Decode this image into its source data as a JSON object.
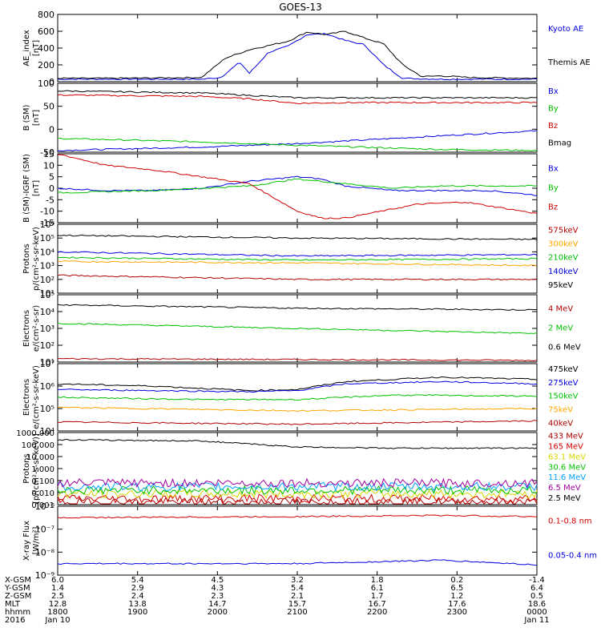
{
  "title": "GOES-13",
  "colors": {
    "black": "#000000",
    "red": "#d00000",
    "green": "#00c000",
    "blue": "#0000e0",
    "orange": "#ffa500",
    "cyan": "#00a0ff",
    "yellow": "#d8d800",
    "purple": "#a000a0",
    "darkred": "#b00000"
  },
  "time_axis": {
    "ticks": [
      "1800",
      "1900",
      "2000",
      "2100",
      "2200",
      "2300",
      "0000"
    ],
    "rows": [
      {
        "label": "X-GSM",
        "values": [
          "6.0",
          "5.4",
          "4.5",
          "3.2",
          "1.8",
          "0.2",
          "-1.4"
        ]
      },
      {
        "label": "Y-GSM",
        "values": [
          "1.4",
          "2.9",
          "4.3",
          "5.4",
          "6.1",
          "6.5",
          "6.4"
        ]
      },
      {
        "label": "Z-GSM",
        "values": [
          "2.5",
          "2.4",
          "2.3",
          "2.1",
          "1.7",
          "1.2",
          "0.5"
        ]
      },
      {
        "label": "MLT",
        "values": [
          "12.8",
          "13.8",
          "14.7",
          "15.7",
          "16.7",
          "17.6",
          "18.6"
        ]
      },
      {
        "label": "hhmm",
        "values": [
          "1800",
          "1900",
          "2000",
          "2100",
          "2200",
          "2300",
          "0000"
        ]
      },
      {
        "label": "2016",
        "values": [
          "Jan 10",
          "",
          "",
          "",
          "",
          "",
          "Jan 11"
        ]
      }
    ]
  },
  "chart_data": [
    {
      "type": "line",
      "id": "ae",
      "ylabel_lines": [
        "AE_index",
        "[nT]"
      ],
      "ylim": [
        0,
        800
      ],
      "ticks": [
        "800",
        "600",
        "400",
        "200",
        "0"
      ],
      "series": [
        {
          "name": "Kyoto AE",
          "color": "blue"
        },
        {
          "name": "Themis AE",
          "color": "black"
        }
      ],
      "profiles": {
        "Themis AE": [
          [
            0,
            40
          ],
          [
            0.1,
            40
          ],
          [
            0.2,
            45
          ],
          [
            0.3,
            50
          ],
          [
            0.35,
            280
          ],
          [
            0.4,
            380
          ],
          [
            0.44,
            430
          ],
          [
            0.48,
            480
          ],
          [
            0.52,
            590
          ],
          [
            0.56,
            560
          ],
          [
            0.6,
            600
          ],
          [
            0.64,
            520
          ],
          [
            0.68,
            450
          ],
          [
            0.72,
            200
          ],
          [
            0.76,
            60
          ],
          [
            0.8,
            70
          ],
          [
            0.86,
            50
          ],
          [
            1,
            40
          ]
        ],
        "Kyoto AE": [
          [
            0,
            30
          ],
          [
            0.1,
            30
          ],
          [
            0.2,
            30
          ],
          [
            0.3,
            30
          ],
          [
            0.34,
            50
          ],
          [
            0.38,
            230
          ],
          [
            0.4,
            100
          ],
          [
            0.44,
            350
          ],
          [
            0.48,
            420
          ],
          [
            0.52,
            560
          ],
          [
            0.56,
            570
          ],
          [
            0.6,
            490
          ],
          [
            0.64,
            440
          ],
          [
            0.68,
            200
          ],
          [
            0.72,
            40
          ],
          [
            0.8,
            30
          ],
          [
            1,
            30
          ]
        ]
      }
    },
    {
      "type": "line",
      "id": "bsm",
      "ylabel_lines": [
        "B (SM)",
        "[nT]"
      ],
      "ylim": [
        -60,
        140
      ],
      "ticks": [
        "100",
        "50",
        "0",
        "-50"
      ],
      "series": [
        {
          "name": "Bx",
          "color": "blue"
        },
        {
          "name": "By",
          "color": "green"
        },
        {
          "name": "Bz",
          "color": "red"
        },
        {
          "name": "Bmag",
          "color": "black"
        }
      ],
      "profiles": {
        "Bmag": [
          [
            0,
            118
          ],
          [
            0.3,
            112
          ],
          [
            0.4,
            105
          ],
          [
            0.5,
            98
          ],
          [
            0.6,
            98
          ],
          [
            1,
            98
          ]
        ],
        "Bz": [
          [
            0,
            106
          ],
          [
            0.3,
            102
          ],
          [
            0.4,
            95
          ],
          [
            0.5,
            82
          ],
          [
            0.6,
            84
          ],
          [
            1,
            84
          ]
        ],
        "By": [
          [
            0,
            -20
          ],
          [
            0.3,
            -30
          ],
          [
            0.5,
            -40
          ],
          [
            0.7,
            -48
          ],
          [
            0.8,
            -52
          ],
          [
            1,
            -55
          ]
        ],
        "Bx": [
          [
            0,
            -55
          ],
          [
            0.3,
            -45
          ],
          [
            0.5,
            -35
          ],
          [
            0.7,
            -20
          ],
          [
            0.9,
            -5
          ],
          [
            1,
            2
          ]
        ]
      }
    },
    {
      "type": "line",
      "id": "bigrf",
      "ylabel_lines": [
        "B (SM)-IGRF (SM)",
        "[nT]"
      ],
      "ylim": [
        -15,
        15
      ],
      "ticks": [
        "15",
        "10",
        "5",
        "0",
        "-5",
        "-10",
        "-15"
      ],
      "series": [
        {
          "name": "Bx",
          "color": "blue"
        },
        {
          "name": "By",
          "color": "green"
        },
        {
          "name": "Bz",
          "color": "red"
        }
      ],
      "profiles": {
        "Bz": [
          [
            0,
            15
          ],
          [
            0.1,
            10
          ],
          [
            0.2,
            8
          ],
          [
            0.3,
            5
          ],
          [
            0.4,
            2
          ],
          [
            0.45,
            -4
          ],
          [
            0.5,
            -10
          ],
          [
            0.55,
            -13
          ],
          [
            0.6,
            -13
          ],
          [
            0.7,
            -9
          ],
          [
            0.75,
            -7
          ],
          [
            0.85,
            -6
          ],
          [
            1,
            -11
          ]
        ],
        "By": [
          [
            0,
            -2
          ],
          [
            0.2,
            -1
          ],
          [
            0.3,
            0
          ],
          [
            0.4,
            1
          ],
          [
            0.5,
            4
          ],
          [
            0.55,
            3
          ],
          [
            0.6,
            2
          ],
          [
            0.7,
            0
          ],
          [
            0.8,
            1
          ],
          [
            1,
            1
          ]
        ],
        "Bx": [
          [
            0,
            0
          ],
          [
            0.1,
            -1
          ],
          [
            0.2,
            -1
          ],
          [
            0.3,
            0
          ],
          [
            0.4,
            3
          ],
          [
            0.5,
            5
          ],
          [
            0.55,
            4
          ],
          [
            0.6,
            1
          ],
          [
            0.7,
            -1
          ],
          [
            0.8,
            -1
          ],
          [
            0.9,
            -1
          ],
          [
            1,
            -3
          ]
        ]
      }
    },
    {
      "type": "line",
      "id": "protons1",
      "ylabel_lines": [
        "Protons",
        "p/(cm²-s-sr-keV)"
      ],
      "log": true,
      "ylim": [
        1,
        6
      ],
      "ticks": [
        "10⁶",
        "10⁵",
        "10⁴",
        "10³",
        "10²",
        "10¹"
      ],
      "series": [
        {
          "name": "575keV",
          "color": "darkred"
        },
        {
          "name": "300keV",
          "color": "orange"
        },
        {
          "name": "210keV",
          "color": "green"
        },
        {
          "name": "140keV",
          "color": "blue"
        },
        {
          "name": "95keV",
          "color": "black"
        }
      ],
      "profiles": {
        "95keV": [
          [
            0,
            5.2
          ],
          [
            0.5,
            5.0
          ],
          [
            1,
            4.9
          ]
        ],
        "140keV": [
          [
            0,
            4.0
          ],
          [
            0.5,
            3.7
          ],
          [
            1,
            3.8
          ]
        ],
        "210keV": [
          [
            0,
            3.6
          ],
          [
            0.5,
            3.4
          ],
          [
            1,
            3.5
          ]
        ],
        "300keV": [
          [
            0,
            3.3
          ],
          [
            0.5,
            3.2
          ],
          [
            1,
            3.0
          ]
        ],
        "575keV": [
          [
            0,
            2.3
          ],
          [
            0.5,
            2.0
          ],
          [
            1,
            2.0
          ]
        ]
      }
    },
    {
      "type": "line",
      "id": "electrons1",
      "ylabel_lines": [
        "Electrons",
        "e/(cm²-s-sr)"
      ],
      "log": true,
      "ylim": [
        1,
        5
      ],
      "ticks": [
        "10⁵",
        "10⁴",
        "10³",
        "10²",
        "10¹"
      ],
      "series": [
        {
          "name": "4 MeV",
          "color": "darkred"
        },
        {
          "name": "2 MeV",
          "color": "green"
        },
        {
          "name": "0.6 MeV",
          "color": "black"
        }
      ],
      "profiles": {
        "0.6 MeV": [
          [
            0,
            4.4
          ],
          [
            0.5,
            4.2
          ],
          [
            1,
            4.1
          ]
        ],
        "2 MeV": [
          [
            0,
            3.3
          ],
          [
            0.5,
            3.0
          ],
          [
            1,
            2.7
          ]
        ],
        "4 MeV": [
          [
            0,
            1.2
          ],
          [
            0.5,
            1.15
          ],
          [
            1,
            1.1
          ]
        ]
      }
    },
    {
      "type": "line",
      "id": "electrons2",
      "ylabel_lines": [
        "Electrons",
        "e/(cm²-s-sr-keV)"
      ],
      "log": true,
      "ylim": [
        4,
        7
      ],
      "ticks": [
        "10⁷",
        "10⁶",
        "10⁵",
        "10⁴"
      ],
      "series": [
        {
          "name": "475keV",
          "color": "black"
        },
        {
          "name": "275keV",
          "color": "blue"
        },
        {
          "name": "150keV",
          "color": "green"
        },
        {
          "name": "75keV",
          "color": "orange"
        },
        {
          "name": "40keV",
          "color": "darkred"
        }
      ],
      "profiles": {
        "475keV": [
          [
            0,
            6.1
          ],
          [
            0.2,
            6.0
          ],
          [
            0.4,
            5.8
          ],
          [
            0.5,
            5.85
          ],
          [
            0.6,
            6.2
          ],
          [
            0.8,
            6.4
          ],
          [
            1,
            6.3
          ]
        ],
        "275keV": [
          [
            0,
            5.85
          ],
          [
            0.2,
            5.8
          ],
          [
            0.4,
            5.75
          ],
          [
            0.5,
            5.8
          ],
          [
            0.6,
            6.1
          ],
          [
            0.8,
            6.2
          ],
          [
            1,
            6.1
          ]
        ],
        "150keV": [
          [
            0,
            5.5
          ],
          [
            0.3,
            5.4
          ],
          [
            0.5,
            5.4
          ],
          [
            0.7,
            5.6
          ],
          [
            1,
            5.55
          ]
        ],
        "75keV": [
          [
            0,
            5.05
          ],
          [
            0.5,
            4.9
          ],
          [
            1,
            5.0
          ]
        ],
        "40keV": [
          [
            0,
            4.4
          ],
          [
            0.5,
            4.3
          ],
          [
            1,
            4.45
          ]
        ]
      }
    },
    {
      "type": "line",
      "id": "protons2",
      "ylabel_lines": [
        "Protons",
        "[p/(cm²-s-sr-keV)]"
      ],
      "log": true,
      "ylim": [
        -3,
        3
      ],
      "ticks": [
        "1000.000",
        "100.000",
        "10.000",
        "1.000",
        "0.100",
        "0.010",
        "0.001"
      ],
      "series": [
        {
          "name": "433 MeV",
          "color": "darkred"
        },
        {
          "name": "165 MeV",
          "color": "red"
        },
        {
          "name": "63.1 MeV",
          "color": "yellow"
        },
        {
          "name": "30.6 MeV",
          "color": "green"
        },
        {
          "name": "11.6 MeV",
          "color": "cyan"
        },
        {
          "name": "6.5 MeV",
          "color": "purple"
        },
        {
          "name": "2.5 MeV",
          "color": "black"
        }
      ],
      "profiles": {
        "2.5 MeV": [
          [
            0,
            2.4
          ],
          [
            0.3,
            2.3
          ],
          [
            0.5,
            1.8
          ],
          [
            0.7,
            1.7
          ],
          [
            1,
            1.7
          ]
        ],
        "6.5 MeV": [
          [
            0,
            -1.2
          ],
          [
            1,
            -1.2
          ]
        ],
        "11.6 MeV": [
          [
            0,
            -1.5
          ],
          [
            1,
            -1.5
          ]
        ],
        "30.6 MeV": [
          [
            0,
            -1.8
          ],
          [
            1,
            -1.8
          ]
        ],
        "63.1 MeV": [
          [
            0,
            -2.1
          ],
          [
            1,
            -2.1
          ]
        ],
        "165 MeV": [
          [
            0,
            -2.5
          ],
          [
            1,
            -2.5
          ]
        ],
        "433 MeV": [
          [
            0,
            -2.8
          ],
          [
            1,
            -2.8
          ]
        ]
      }
    },
    {
      "type": "line",
      "id": "xray",
      "ylabel_lines": [
        "X-ray Flux",
        "[W/m²]"
      ],
      "log": true,
      "ylim": [
        -9,
        -6
      ],
      "ticks": [
        "10⁻⁶",
        "10⁻⁷",
        "10⁻⁸",
        "10⁻⁹"
      ],
      "series": [
        {
          "name": "0.1-0.8 nm",
          "color": "red"
        },
        {
          "name": "0.05-0.4 nm",
          "color": "blue"
        }
      ],
      "profiles": {
        "0.1-0.8 nm": [
          [
            0,
            -6.5
          ],
          [
            0.5,
            -6.45
          ],
          [
            0.8,
            -6.4
          ],
          [
            1,
            -6.45
          ]
        ],
        "0.05-0.4 nm": [
          [
            0,
            -8.5
          ],
          [
            0.5,
            -8.5
          ],
          [
            0.8,
            -8.35
          ],
          [
            1,
            -8.55
          ]
        ]
      }
    }
  ]
}
